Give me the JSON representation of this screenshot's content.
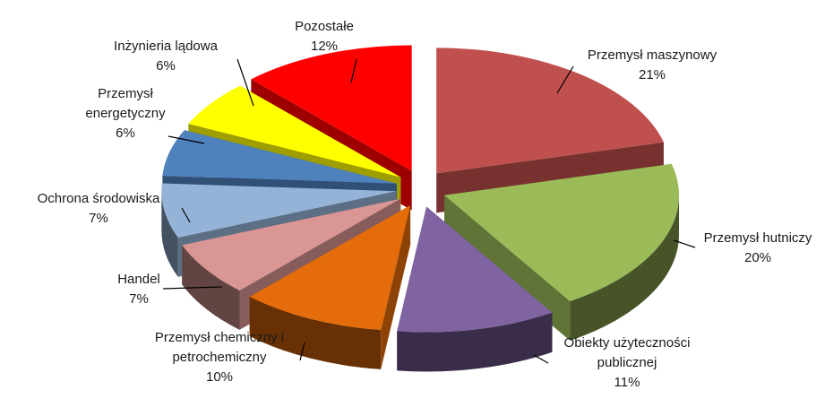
{
  "chart_data": {
    "type": "pie",
    "style": "3d-exploded",
    "title": "",
    "slices": [
      {
        "name": "Przemysł maszynowy",
        "label_lines": [
          "Przemysł maszynowy"
        ],
        "value": 21,
        "percent_label": "21%",
        "color": "#C0504D"
      },
      {
        "name": "Przemysł hutniczy",
        "label_lines": [
          "Przemysł hutniczy"
        ],
        "value": 20,
        "percent_label": "20%",
        "color": "#9BBB59"
      },
      {
        "name": "Obiekty użyteczności publicznej",
        "label_lines": [
          "Obiekty użyteczności",
          "publicznej"
        ],
        "value": 11,
        "percent_label": "11%",
        "color": "#8064A2"
      },
      {
        "name": "Przemysł chemiczny i petrochemiczny",
        "label_lines": [
          "Przemysł chemiczny i",
          "petrochemiczny"
        ],
        "value": 10,
        "percent_label": "10%",
        "color": "#E46C0A"
      },
      {
        "name": "Handel",
        "label_lines": [
          "Handel"
        ],
        "value": 7,
        "percent_label": "7%",
        "color": "#D99694"
      },
      {
        "name": "Ochrona środowiska",
        "label_lines": [
          "Ochrona środowiska"
        ],
        "value": 7,
        "percent_label": "7%",
        "color": "#95B3D7"
      },
      {
        "name": "Przemysł energetyczny",
        "label_lines": [
          "Przemysł",
          "energetyczny"
        ],
        "value": 6,
        "percent_label": "6%",
        "color": "#4F81BD"
      },
      {
        "name": "Inżynieria lądowa",
        "label_lines": [
          "Inżynieria lądowa"
        ],
        "value": 6,
        "percent_label": "6%",
        "color": "#FFFF00"
      },
      {
        "name": "Pozostałe",
        "label_lines": [
          "Pozostałe"
        ],
        "value": 12,
        "percent_label": "12%",
        "color": "#FF0000"
      }
    ]
  }
}
